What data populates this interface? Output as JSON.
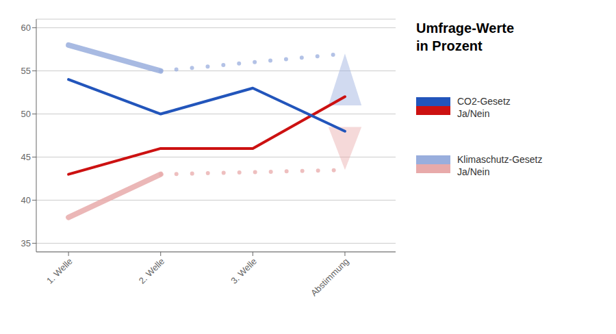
{
  "chart_data": {
    "type": "line",
    "title": "Umfrage-Werte\nin Prozent",
    "xlim": [
      -0.35,
      3.55
    ],
    "xticks": [
      {
        "value": 0,
        "label": "1. Welle"
      },
      {
        "value": 1,
        "label": "2. Welle"
      },
      {
        "value": 2,
        "label": "3. Welle"
      },
      {
        "value": 3,
        "label": "Abstimmung"
      }
    ],
    "ylim": [
      34,
      61
    ],
    "yticks": [
      35,
      40,
      45,
      50,
      55,
      60
    ],
    "grid": true,
    "series": [
      {
        "name": "CO2-Gesetz\nJa/Nein",
        "color": "#2255bb",
        "line_style": "solid",
        "x": [
          0,
          1,
          2,
          3
        ],
        "values": [
          54,
          50,
          53,
          48
        ]
      },
      {
        "name": "CO2-Gesetz\nJa/Nein",
        "color": "#cc1111",
        "line_style": "solid",
        "x": [
          0,
          1,
          2,
          3
        ],
        "values": [
          43,
          46,
          46,
          52
        ]
      },
      {
        "name": "Klimaschutz-Gesetz\nJa/Nein",
        "color": "#99aedd",
        "line_style": "solid",
        "x": [
          0,
          1
        ],
        "values": [
          58,
          55
        ]
      },
      {
        "name": "Klimaschutz-Gesetz\nJa/Nein",
        "color": "#e8aaaa",
        "line_style": "solid",
        "x": [
          0,
          1
        ],
        "values": [
          38,
          43
        ]
      },
      {
        "name": "Klimaschutz-Gesetz\nJa/Nein",
        "color": "#99aedd",
        "line_style": "dotted",
        "x": [
          1,
          3
        ],
        "values": [
          55,
          57
        ]
      },
      {
        "name": "Klimaschutz-Gesetz\nJa/Nein",
        "color": "#e8aaaa",
        "line_style": "dotted",
        "x": [
          1,
          3
        ],
        "values": [
          43,
          43.5
        ]
      },
      {
        "type": "triangle",
        "marker": "triangle-up",
        "color": "#99aedd",
        "x": [
          3
        ],
        "low": [
          51
        ],
        "high": [
          57
        ]
      },
      {
        "type": "triangle",
        "marker": "triangle-down",
        "color": "#e8aaaa",
        "x": [
          3
        ],
        "low": [
          43.5
        ],
        "high": [
          48.5
        ]
      }
    ]
  }
}
